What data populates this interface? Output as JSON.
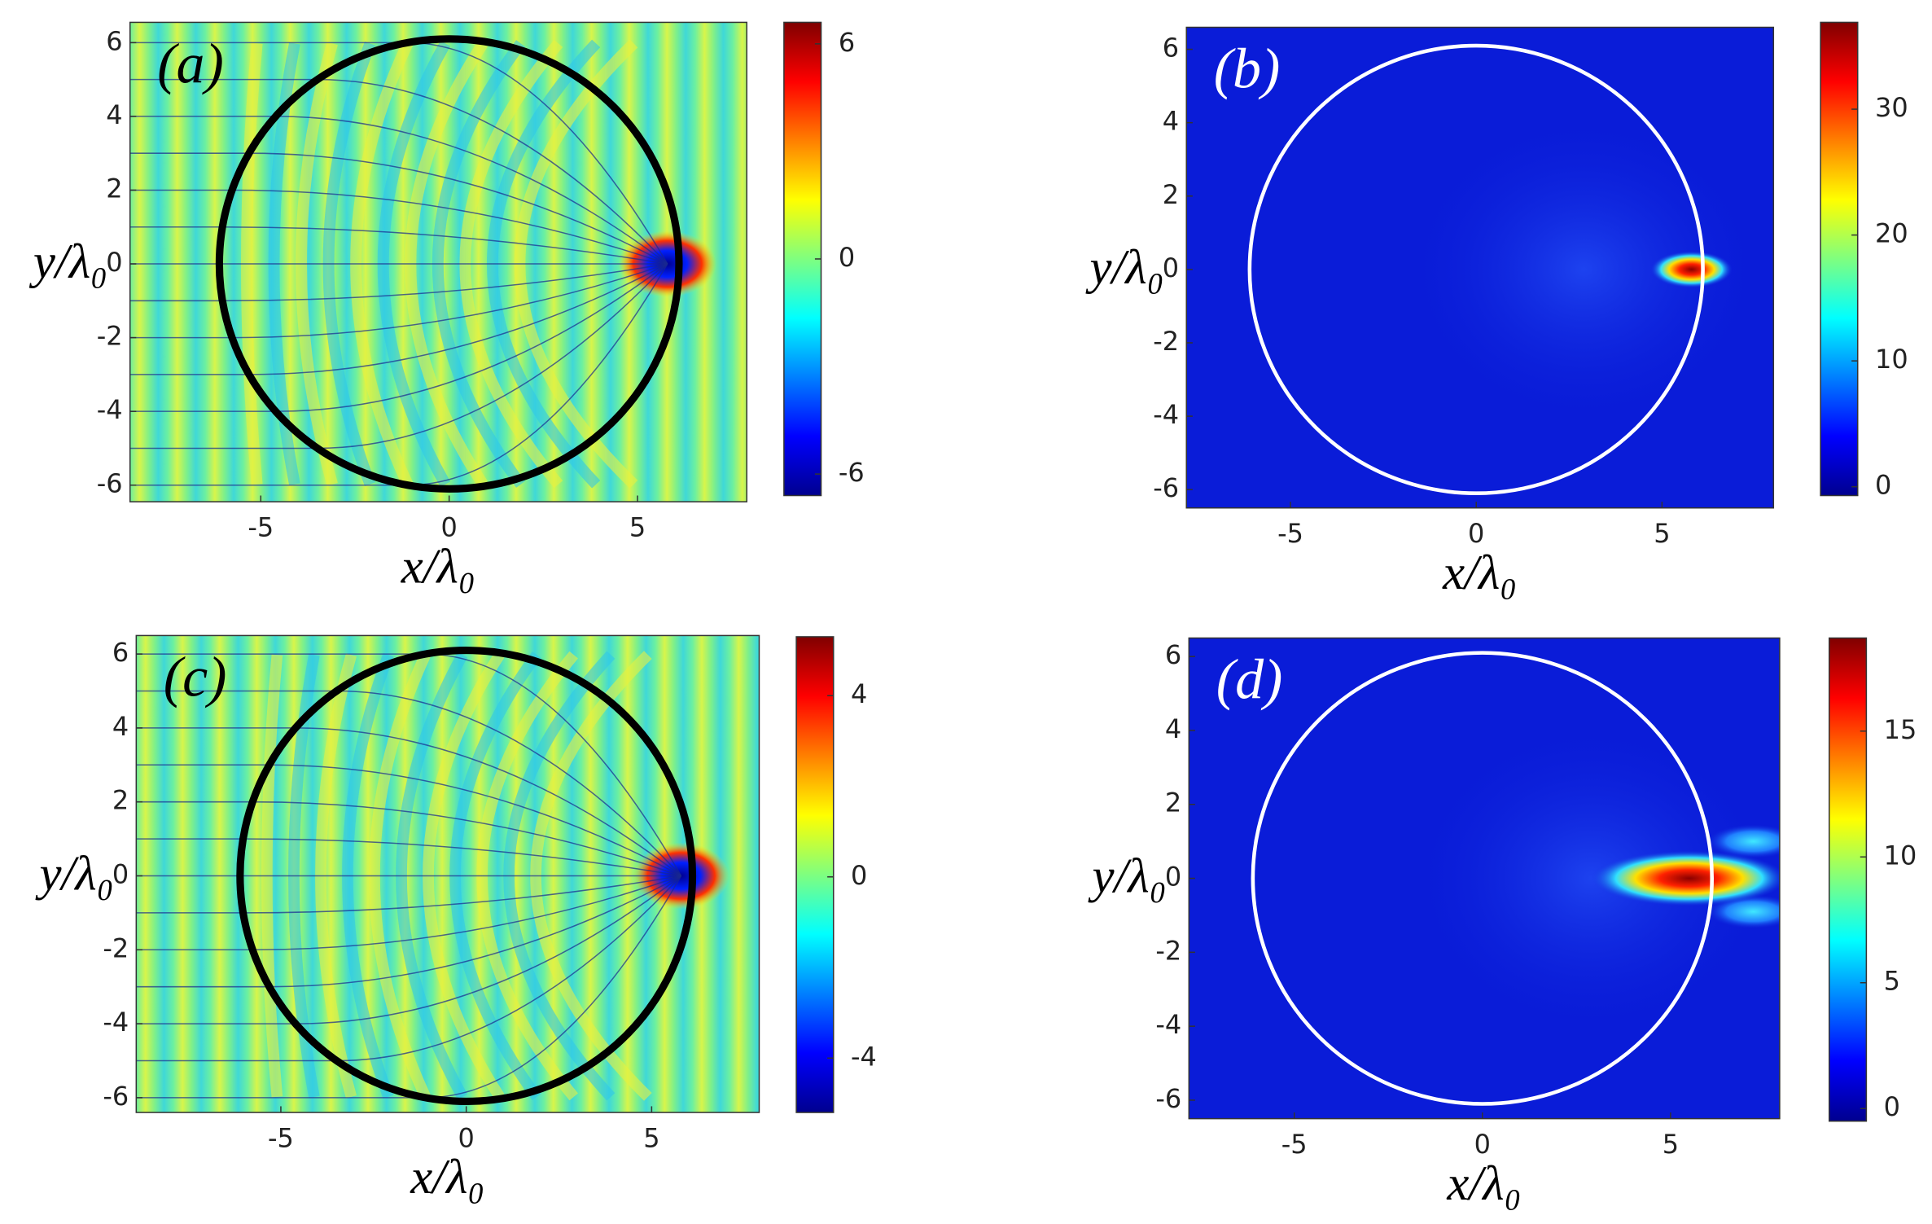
{
  "chart_data": [
    {
      "type": "heatmap",
      "field": "wave",
      "label": "(a)",
      "xlabel": "x/λ₀",
      "ylabel": "y/λ₀",
      "xlim": [
        -8.47,
        7.9
      ],
      "ylim": [
        -6.45,
        6.55
      ],
      "xticks": [
        -5,
        0,
        5
      ],
      "yticks": [
        -6,
        -4,
        -2,
        0,
        2,
        4,
        6
      ],
      "colorbar": {
        "lim": [
          -6.6,
          6.6
        ],
        "ticks": [
          -6,
          0,
          6
        ]
      },
      "circle": {
        "r": 6.1,
        "color": "#000000"
      }
    },
    {
      "type": "heatmap",
      "field": "intensity",
      "label": "(b)",
      "xlabel": "x/λ₀",
      "ylabel": "y/λ₀",
      "xlim": [
        -7.8,
        8.0
      ],
      "ylim": [
        -6.5,
        6.6
      ],
      "xticks": [
        -5,
        0,
        5
      ],
      "yticks": [
        -6,
        -4,
        -2,
        0,
        2,
        4,
        6
      ],
      "colorbar": {
        "lim": [
          -0.7,
          36.9
        ],
        "ticks": [
          0,
          10,
          20,
          30
        ]
      },
      "circle": {
        "r": 6.1,
        "color": "#ffffff"
      }
    },
    {
      "type": "heatmap",
      "field": "wave",
      "label": "(c)",
      "xlabel": "x/λ₀",
      "ylabel": "y/λ₀",
      "xlim": [
        -8.9,
        7.9
      ],
      "ylim": [
        -6.4,
        6.5
      ],
      "xticks": [
        -5,
        0,
        5
      ],
      "yticks": [
        -6,
        -4,
        -2,
        0,
        2,
        4,
        6
      ],
      "colorbar": {
        "lim": [
          -5.2,
          5.3
        ],
        "ticks": [
          -4,
          0,
          4
        ]
      },
      "circle": {
        "r": 6.1,
        "color": "#000000"
      }
    },
    {
      "type": "heatmap",
      "field": "intensity",
      "label": "(d)",
      "xlabel": "x/λ₀",
      "ylabel": "y/λ₀",
      "xlim": [
        -7.8,
        7.9
      ],
      "ylim": [
        -6.5,
        6.5
      ],
      "xticks": [
        -5,
        0,
        5
      ],
      "yticks": [
        -6,
        -4,
        -2,
        0,
        2,
        4,
        6
      ],
      "colorbar": {
        "lim": [
          -0.5,
          18.7
        ],
        "ticks": [
          0,
          5,
          10,
          15
        ]
      },
      "circle": {
        "r": 6.1,
        "color": "#ffffff"
      }
    }
  ]
}
